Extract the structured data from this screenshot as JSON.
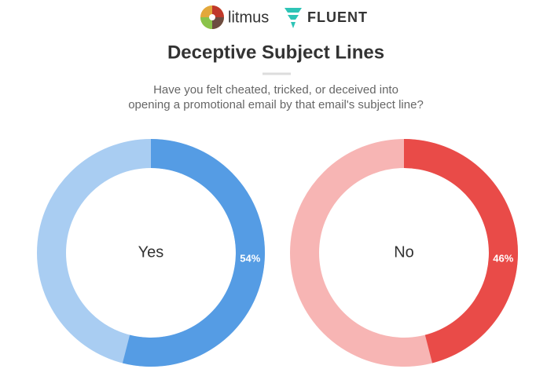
{
  "header": {
    "brands": [
      "litmus",
      "FLUENT"
    ],
    "title": "Deceptive Subject Lines",
    "subtitle": [
      "Have you felt cheated, tricked, or deceived into",
      "opening a promotional email by that email's subject line?"
    ]
  },
  "chart_data": [
    {
      "type": "donut",
      "categories": [
        "Yes"
      ],
      "values": [
        54
      ],
      "value_labels": [
        "54%"
      ],
      "color": "#559ce4",
      "track_color": "#a9cdf2"
    },
    {
      "type": "donut",
      "categories": [
        "No"
      ],
      "values": [
        46
      ],
      "value_labels": [
        "46%"
      ],
      "color": "#e94b48",
      "track_color": "#f7b5b4"
    }
  ]
}
